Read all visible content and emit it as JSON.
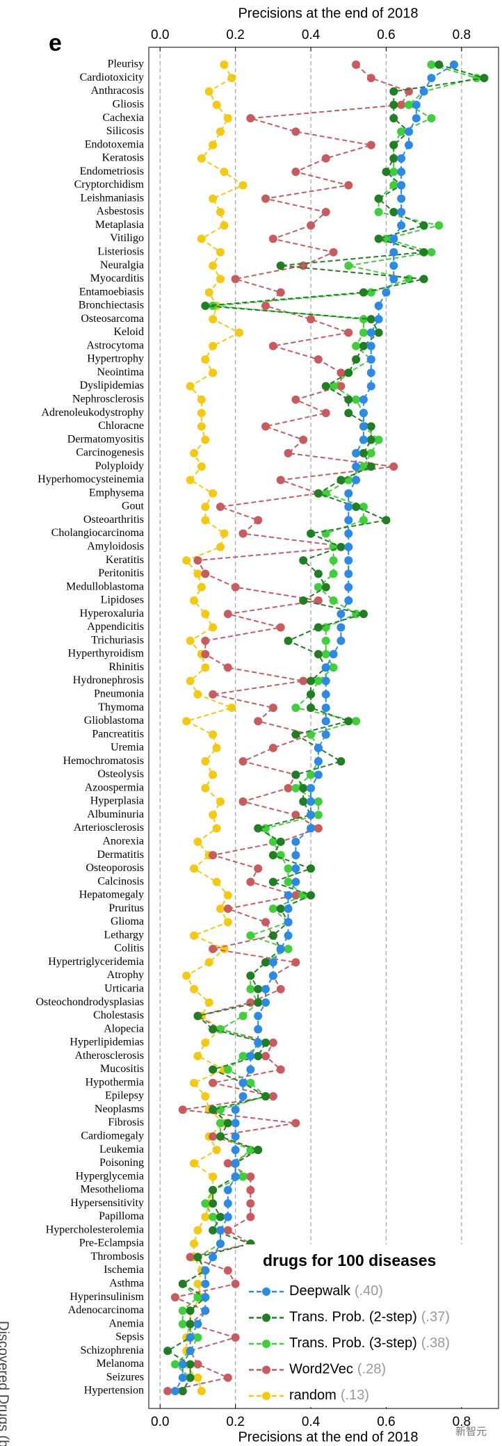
{
  "chart_data": {
    "type": "line",
    "panel_label": "e",
    "title": "Precisions at the end of 2018",
    "ylabel": "Discovered Drugs (best)",
    "legend_title": "drugs for 100 diseases",
    "watermark": "新智元",
    "orientation": "horizontal",
    "categories": [
      "Pleurisy",
      "Cardiotoxicity",
      "Anthracosis",
      "Gliosis",
      "Cachexia",
      "Silicosis",
      "Endotoxemia",
      "Keratosis",
      "Endometriosis",
      "Cryptorchidism",
      "Leishmaniasis",
      "Asbestosis",
      "Metaplasia",
      "Vitiligo",
      "Listeriosis",
      "Neuralgia",
      "Myocarditis",
      "Entamoebiasis",
      "Bronchiectasis",
      "Osteosarcoma",
      "Keloid",
      "Astrocytoma",
      "Hypertrophy",
      "Neointima",
      "Dyslipidemias",
      "Nephrosclerosis",
      "Adrenoleukodystrophy",
      "Chloracne",
      "Dermatomyositis",
      "Carcinogenesis",
      "Polyploidy",
      "Hyperhomocysteinemia",
      "Emphysema",
      "Gout",
      "Osteoarthritis",
      "Cholangiocarcinoma",
      "Amyloidosis",
      "Keratitis",
      "Peritonitis",
      "Medulloblastoma",
      "Lipidoses",
      "Hyperoxaluria",
      "Appendicitis",
      "Trichuriasis",
      "Hyperthyroidism",
      "Rhinitis",
      "Hydronephrosis",
      "Pneumonia",
      "Thymoma",
      "Glioblastoma",
      "Pancreatitis",
      "Uremia",
      "Hemochromatosis",
      "Osteolysis",
      "Azoospermia",
      "Hyperplasia",
      "Albuminuria",
      "Arteriosclerosis",
      "Anorexia",
      "Dermatitis",
      "Osteoporosis",
      "Calcinosis",
      "Hepatomegaly",
      "Pruritus",
      "Glioma",
      "Lethargy",
      "Colitis",
      "Hypertriglyceridemia",
      "Atrophy",
      "Urticaria",
      "Osteochondrodysplasias",
      "Cholestasis",
      "Alopecia",
      "Hyperlipidemias",
      "Atherosclerosis",
      "Mucositis",
      "Hypothermia",
      "Epilepsy",
      "Neoplasms",
      "Fibrosis",
      "Cardiomegaly",
      "Leukemia",
      "Poisoning",
      "Hyperglycemia",
      "Mesothelioma",
      "Hypersensitivity",
      "Papilloma",
      "Hypercholesterolemia",
      "Pre-Eclampsia",
      "Thrombosis",
      "Ischemia",
      "Asthma",
      "Hyperinsulinism",
      "Adenocarcinoma",
      "Anemia",
      "Sepsis",
      "Schizophrenia",
      "Melanoma",
      "Seizures",
      "Hypertension"
    ],
    "series": [
      {
        "name": "Deepwalk",
        "legend_note": "(.40)",
        "color": "#2a8ae6",
        "values": [
          0.78,
          0.72,
          0.7,
          0.68,
          0.68,
          0.66,
          0.66,
          0.64,
          0.64,
          0.64,
          0.64,
          0.64,
          0.64,
          0.62,
          0.62,
          0.62,
          0.62,
          0.6,
          0.58,
          0.58,
          0.56,
          0.56,
          0.56,
          0.56,
          0.56,
          0.54,
          0.54,
          0.54,
          0.54,
          0.52,
          0.52,
          0.52,
          0.5,
          0.5,
          0.5,
          0.5,
          0.5,
          0.5,
          0.5,
          0.5,
          0.5,
          0.48,
          0.48,
          0.48,
          0.46,
          0.44,
          0.44,
          0.44,
          0.44,
          0.44,
          0.44,
          0.42,
          0.42,
          0.42,
          0.4,
          0.4,
          0.4,
          0.4,
          0.36,
          0.36,
          0.36,
          0.36,
          0.34,
          0.34,
          0.34,
          0.34,
          0.32,
          0.3,
          0.3,
          0.28,
          0.28,
          0.26,
          0.26,
          0.26,
          0.24,
          0.24,
          0.22,
          0.22,
          0.2,
          0.2,
          0.2,
          0.2,
          0.2,
          0.2,
          0.18,
          0.18,
          0.18,
          0.16,
          0.16,
          0.14,
          0.12,
          0.12,
          0.12,
          0.12,
          0.1,
          0.08,
          0.08,
          0.06,
          0.06,
          0.04
        ]
      },
      {
        "name": "Trans. Prob. (2-step)",
        "legend_note": "(.37)",
        "color": "#1f7f22",
        "values": [
          0.74,
          0.86,
          0.62,
          0.62,
          0.62,
          0.66,
          0.62,
          0.62,
          0.6,
          0.64,
          0.58,
          0.62,
          0.7,
          0.58,
          0.7,
          0.32,
          0.7,
          0.54,
          0.12,
          0.56,
          0.58,
          0.54,
          0.52,
          0.5,
          0.44,
          0.5,
          0.5,
          0.56,
          0.56,
          0.54,
          0.56,
          0.48,
          0.42,
          0.52,
          0.6,
          0.4,
          0.48,
          0.38,
          0.42,
          0.44,
          0.38,
          0.54,
          0.42,
          0.34,
          0.42,
          0.44,
          0.4,
          0.4,
          0.4,
          0.5,
          0.36,
          0.42,
          0.48,
          0.36,
          0.38,
          0.38,
          0.4,
          0.26,
          0.32,
          0.3,
          0.4,
          0.3,
          0.4,
          0.32,
          0.34,
          0.3,
          0.32,
          0.28,
          0.24,
          0.26,
          0.26,
          0.1,
          0.14,
          0.28,
          0.26,
          0.14,
          0.22,
          0.28,
          0.14,
          0.18,
          0.16,
          0.26,
          0.2,
          0.2,
          0.14,
          0.14,
          0.16,
          0.14,
          0.24,
          0.1,
          0.12,
          0.06,
          0.12,
          0.08,
          0.08,
          0.08,
          0.02,
          0.08,
          0.08,
          0.06
        ]
      },
      {
        "name": "Trans. Prob. (3-step)",
        "legend_note": "(.38)",
        "color": "#3fcf3a",
        "values": [
          0.72,
          0.84,
          0.7,
          0.66,
          0.72,
          0.64,
          0.62,
          0.62,
          0.62,
          0.62,
          0.58,
          0.58,
          0.74,
          0.6,
          0.72,
          0.5,
          0.66,
          0.56,
          0.14,
          0.54,
          0.54,
          0.52,
          0.56,
          0.5,
          0.46,
          0.52,
          0.54,
          0.54,
          0.58,
          0.56,
          0.54,
          0.5,
          0.44,
          0.54,
          0.54,
          0.44,
          0.46,
          0.46,
          0.46,
          0.42,
          0.46,
          0.52,
          0.44,
          0.44,
          0.44,
          0.46,
          0.42,
          0.4,
          0.36,
          0.52,
          0.4,
          0.42,
          0.42,
          0.4,
          0.36,
          0.42,
          0.42,
          0.28,
          0.3,
          0.32,
          0.34,
          0.34,
          0.38,
          0.3,
          0.34,
          0.24,
          0.34,
          0.28,
          0.24,
          0.24,
          0.26,
          0.22,
          0.16,
          0.28,
          0.22,
          0.18,
          0.24,
          0.28,
          0.16,
          0.16,
          0.16,
          0.24,
          0.2,
          0.22,
          0.14,
          0.12,
          0.14,
          0.16,
          0.16,
          0.1,
          0.12,
          0.06,
          0.1,
          0.06,
          0.06,
          0.1,
          0.08,
          0.04,
          0.08,
          0.06
        ]
      },
      {
        "name": "Word2Vec",
        "legend_note": "(.28)",
        "color": "#c95b5e",
        "values": [
          0.52,
          0.56,
          0.66,
          0.64,
          0.24,
          0.36,
          0.56,
          0.44,
          0.36,
          0.5,
          0.28,
          0.44,
          0.4,
          0.3,
          0.46,
          0.38,
          0.2,
          0.32,
          0.28,
          0.4,
          0.5,
          0.3,
          0.42,
          0.48,
          0.48,
          0.36,
          0.44,
          0.28,
          0.38,
          0.34,
          0.62,
          0.32,
          0.42,
          0.16,
          0.26,
          0.22,
          0.5,
          0.1,
          0.12,
          0.2,
          0.42,
          0.18,
          0.32,
          0.12,
          0.12,
          0.18,
          0.38,
          0.14,
          0.3,
          0.26,
          0.4,
          0.3,
          0.22,
          0.36,
          0.34,
          0.22,
          0.36,
          0.42,
          0.32,
          0.14,
          0.26,
          0.24,
          0.36,
          0.18,
          0.28,
          0.3,
          0.14,
          0.36,
          0.3,
          0.32,
          0.24,
          0.1,
          0.16,
          0.3,
          0.28,
          0.32,
          0.14,
          0.3,
          0.06,
          0.36,
          0.14,
          0.26,
          0.18,
          0.24,
          0.24,
          0.24,
          0.24,
          0.18,
          0.24,
          0.08,
          0.18,
          0.2,
          0.04,
          0.12,
          0.08,
          0.2,
          0.08,
          0.1,
          0.18,
          0.02
        ]
      },
      {
        "name": "random",
        "legend_note": "(.13)",
        "color": "#f5c90f",
        "values": [
          0.17,
          0.19,
          0.13,
          0.15,
          0.18,
          0.16,
          0.14,
          0.11,
          0.17,
          0.22,
          0.14,
          0.16,
          0.17,
          0.11,
          0.16,
          0.14,
          0.16,
          0.13,
          0.15,
          0.14,
          0.21,
          0.14,
          0.12,
          0.14,
          0.08,
          0.11,
          0.11,
          0.11,
          0.12,
          0.09,
          0.11,
          0.08,
          0.14,
          0.12,
          0.12,
          0.17,
          0.16,
          0.07,
          0.1,
          0.11,
          0.09,
          0.12,
          0.14,
          0.08,
          0.11,
          0.12,
          0.08,
          0.1,
          0.19,
          0.07,
          0.14,
          0.15,
          0.12,
          0.14,
          0.12,
          0.16,
          0.14,
          0.15,
          0.1,
          0.13,
          0.09,
          0.15,
          0.18,
          0.16,
          0.18,
          0.09,
          0.17,
          0.13,
          0.07,
          0.09,
          0.13,
          0.11,
          0.16,
          0.12,
          0.1,
          0.17,
          0.09,
          0.12,
          0.13,
          0.17,
          0.13,
          0.15,
          0.09,
          0.14,
          0.14,
          0.13,
          0.12,
          0.1,
          0.09,
          0.09,
          0.11,
          0.1,
          0.11,
          0.08,
          0.08,
          0.07,
          0.07,
          0.06,
          0.1,
          0.11
        ]
      }
    ],
    "ylim": [
      -0.03,
      0.9
    ],
    "yticks": [
      {
        "value": 0,
        "label": "0.0"
      },
      0.2,
      0.4,
      0.6,
      0.8
    ],
    "grid": true,
    "legend": "lower right"
  }
}
